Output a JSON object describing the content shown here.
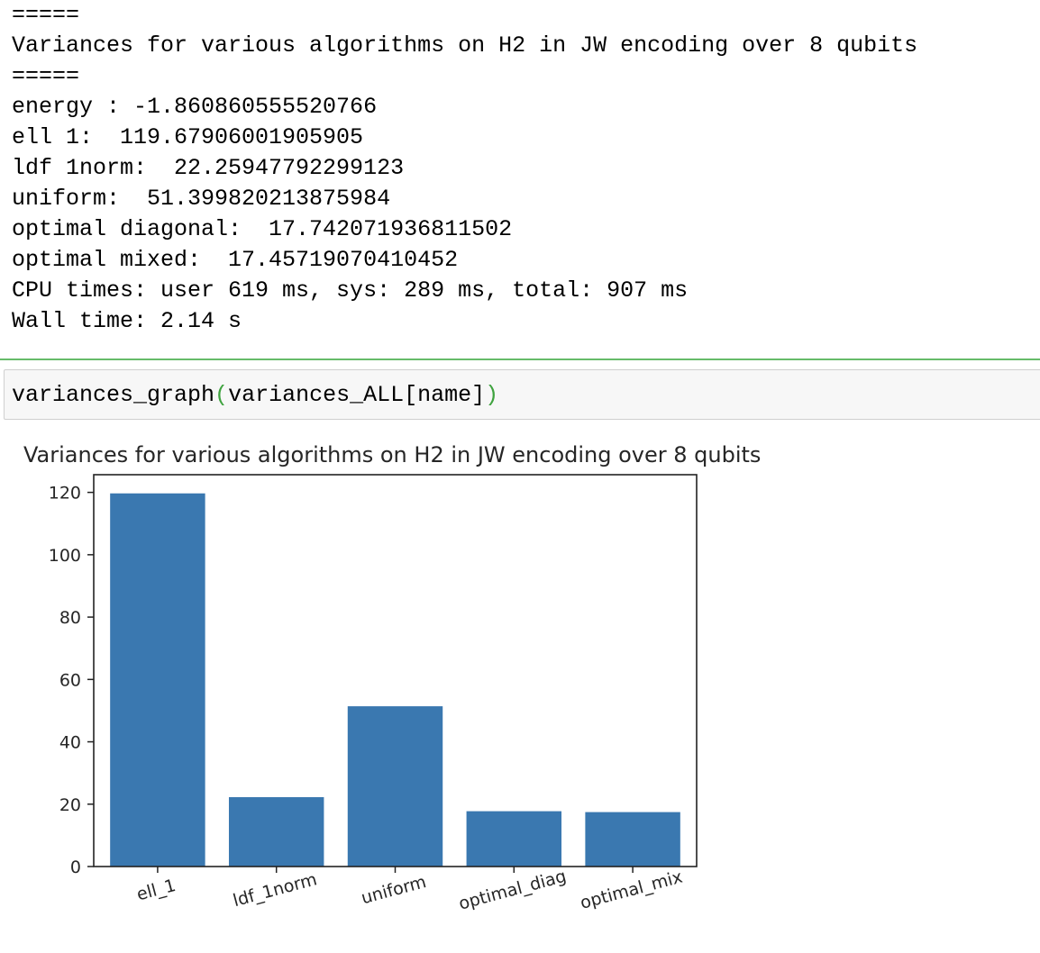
{
  "output": {
    "lines": [
      "=====",
      "Variances for various algorithms on H2 in JW encoding over 8 qubits",
      "=====",
      "energy : -1.860860555520766",
      "ell 1:  119.67906001905905",
      "ldf 1norm:  22.25947792299123",
      "uniform:  51.399820213875984",
      "optimal diagonal:  17.742071936811502",
      "optimal mixed:  17.45719070410452",
      "CPU times: user 619 ms, sys: 289 ms, total: 907 ms",
      "Wall time: 2.14 s"
    ]
  },
  "cell": {
    "code_func": "variances_graph",
    "code_open": "(",
    "code_arg": "variances_ALL[name]",
    "code_close": ")"
  },
  "colors": {
    "bar": "#3a78b0",
    "separator": "#66bb6a",
    "paren": "#3fa33f"
  },
  "chart_data": {
    "type": "bar",
    "title": "Variances for various algorithms on H2 in JW encoding over 8 qubits",
    "categories": [
      "ell_1",
      "ldf_1norm",
      "uniform",
      "optimal_diag",
      "optimal_mix"
    ],
    "values": [
      119.67906001905905,
      22.25947792299123,
      51.399820213875984,
      17.742071936811502,
      17.45719070410452
    ],
    "ylim": [
      0,
      125.67
    ],
    "yticks": [
      0,
      20,
      40,
      60,
      80,
      100,
      120
    ],
    "xlabel": "",
    "ylabel": "",
    "grid": false,
    "xtick_rotation": 15
  }
}
